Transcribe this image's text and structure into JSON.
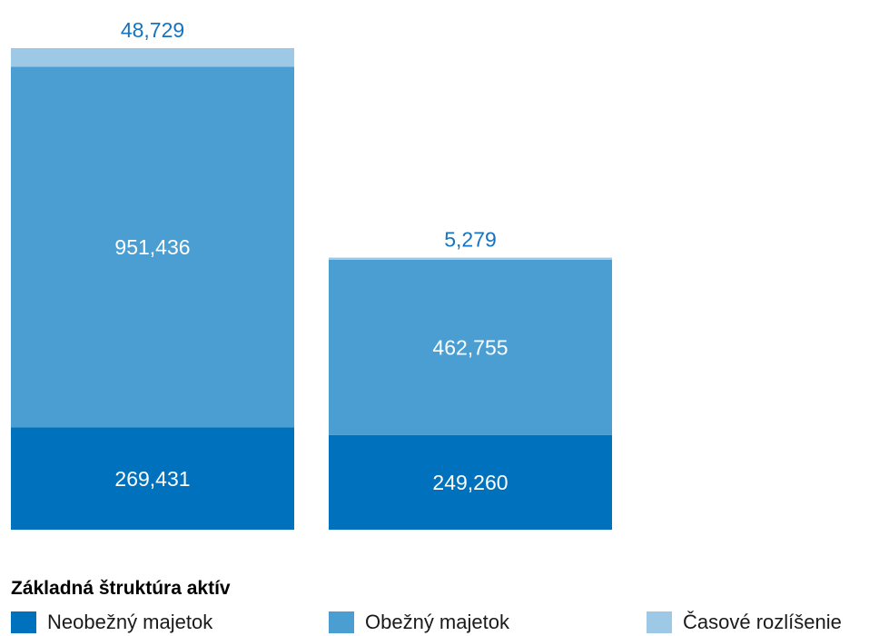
{
  "chart_data": {
    "type": "bar",
    "stacked": true,
    "title": "Základná štruktúra aktív",
    "categories": [
      "",
      ""
    ],
    "series": [
      {
        "name": "Neobežný majetok",
        "values": [
          269431,
          249260
        ],
        "labels": [
          "269,431",
          "249,260"
        ],
        "color": "#0071bc"
      },
      {
        "name": "Obežný majetok",
        "values": [
          951436,
          462755
        ],
        "labels": [
          "951,436",
          "462,755"
        ],
        "color": "#4a9ed2"
      },
      {
        "name": "Časové rozlíšenie",
        "values": [
          48729,
          5279
        ],
        "labels": [
          "48,729",
          "5,279"
        ],
        "color": "#9dc8e6"
      }
    ],
    "legend_position": "bottom",
    "grid": false
  },
  "colors": {
    "top_label": "#1673c0",
    "inside_label": "#ffffff"
  }
}
